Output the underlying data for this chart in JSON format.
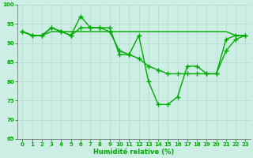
{
  "series": [
    {
      "x": [
        0,
        1,
        2,
        3,
        4,
        5,
        6,
        7,
        8,
        9,
        10,
        11,
        12,
        13,
        14,
        15,
        16,
        17,
        18,
        19,
        20,
        21,
        22,
        23
      ],
      "y": [
        93,
        92,
        92,
        93,
        93,
        93,
        93,
        93,
        93,
        93,
        93,
        93,
        93,
        93,
        93,
        93,
        93,
        93,
        93,
        93,
        93,
        93,
        92,
        92
      ],
      "color": "#00bb00",
      "marker": null,
      "markersize": 0,
      "linewidth": 1.0
    },
    {
      "x": [
        0,
        1,
        2,
        3,
        4,
        5,
        6,
        7,
        8,
        9,
        10,
        11,
        12,
        13,
        14,
        15,
        16,
        17,
        18,
        19,
        20,
        21,
        22,
        23
      ],
      "y": [
        93,
        92,
        92,
        94,
        93,
        92,
        94,
        94,
        94,
        93,
        88,
        87,
        86,
        84,
        83,
        82,
        82,
        82,
        82,
        82,
        82,
        88,
        91,
        92
      ],
      "color": "#00bb00",
      "marker": "+",
      "markersize": 4,
      "linewidth": 1.0
    },
    {
      "x": [
        0,
        1,
        2,
        3,
        4,
        5,
        6,
        7,
        8,
        9,
        10,
        11,
        12,
        13,
        14,
        15,
        16,
        17,
        18,
        19,
        20,
        21,
        22,
        23
      ],
      "y": [
        93,
        92,
        92,
        94,
        93,
        92,
        97,
        94,
        94,
        94,
        87,
        87,
        92,
        80,
        74,
        74,
        76,
        84,
        84,
        82,
        82,
        91,
        92,
        92
      ],
      "color": "#00bb00",
      "marker": "+",
      "markersize": 4,
      "linewidth": 1.0
    }
  ],
  "xlabel": "Humidité relative (%)",
  "xlim": [
    -0.5,
    23.5
  ],
  "ylim": [
    65,
    100
  ],
  "yticks": [
    65,
    70,
    75,
    80,
    85,
    90,
    95,
    100
  ],
  "xticks": [
    0,
    1,
    2,
    3,
    4,
    5,
    6,
    7,
    8,
    9,
    10,
    11,
    12,
    13,
    14,
    15,
    16,
    17,
    18,
    19,
    20,
    21,
    22,
    23
  ],
  "grid_color": "#b8ddd0",
  "bg_color": "#cceee4",
  "line_color": "#00aa00",
  "label_color": "#00aa00",
  "tick_color": "#007700"
}
